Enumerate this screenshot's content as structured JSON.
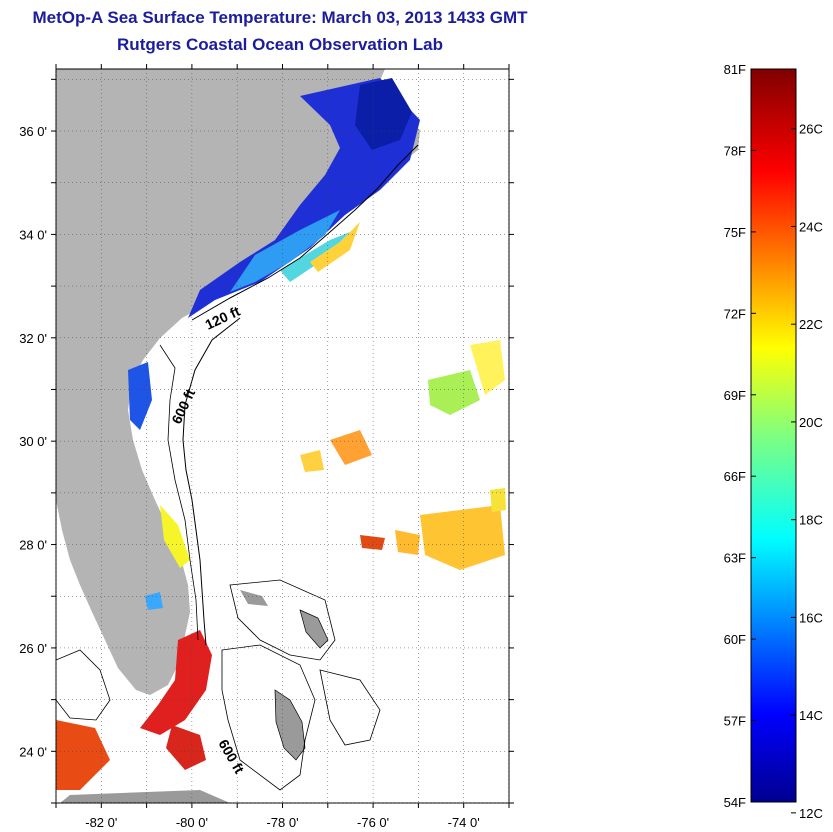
{
  "title": "MetOp-A Sea Surface Temperature:  March 03, 2013 1433 GMT",
  "subtitle": "Rutgers Coastal Ocean Observation Lab",
  "map": {
    "lat_range": [
      23,
      37.2
    ],
    "lon_range": [
      -83,
      -73
    ],
    "lat_ticks": [
      "36 0'",
      "34 0'",
      "32 0'",
      "30 0'",
      "28 0'",
      "26 0'",
      "24 0'"
    ],
    "lat_tick_values": [
      36,
      34,
      32,
      30,
      28,
      26,
      24
    ],
    "lon_ticks": [
      "-82 0'",
      "-80 0'",
      "-78 0'",
      "-76 0'",
      "-74 0'"
    ],
    "lon_tick_values": [
      -82,
      -80,
      -78,
      -76,
      -74
    ],
    "contour_labels": [
      "120 ft",
      "600 ft",
      "600 ft"
    ],
    "land_color": "#b4b4b4",
    "grid": "dotted"
  },
  "colorbar": {
    "fahrenheit_labels": [
      "81F",
      "78F",
      "75F",
      "72F",
      "69F",
      "66F",
      "63F",
      "60F",
      "57F",
      "54F"
    ],
    "fahrenheit_values": [
      81,
      78,
      75,
      72,
      69,
      66,
      63,
      60,
      57,
      54
    ],
    "celsius_labels": [
      "26C",
      "24C",
      "22C",
      "20C",
      "18C",
      "16C",
      "14C",
      "12C"
    ],
    "celsius_values": [
      26,
      24,
      22,
      20,
      18,
      16,
      14,
      12
    ],
    "range_f": [
      54,
      81
    ],
    "colormap": "jet"
  }
}
